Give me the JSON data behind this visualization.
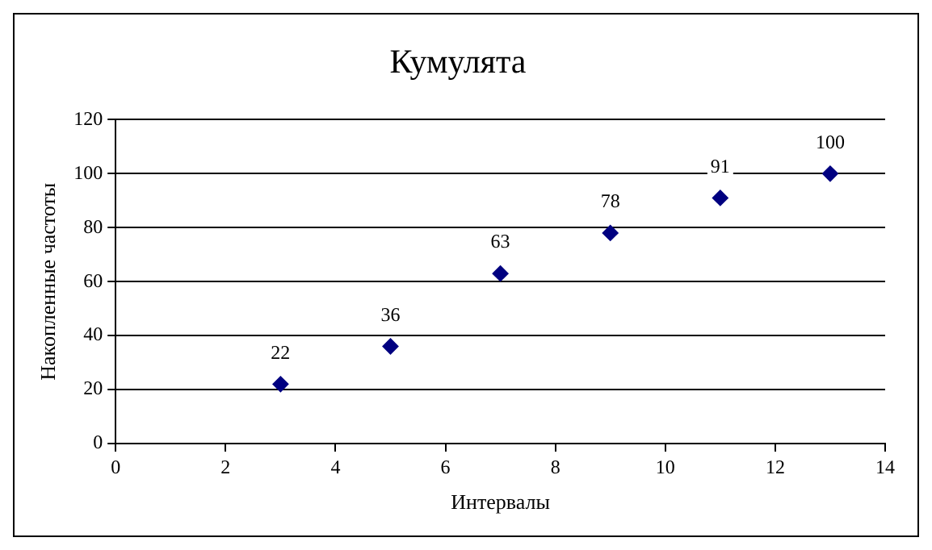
{
  "chart_data": {
    "type": "scatter",
    "title": "Кумулята",
    "xlabel": "Интервалы",
    "ylabel": "Накопленные частоты",
    "x": [
      3,
      5,
      7,
      9,
      11,
      13
    ],
    "series": [
      {
        "color": "#000080",
        "values": [
          22,
          36,
          63,
          78,
          91,
          100
        ]
      }
    ],
    "xlim": [
      0,
      14
    ],
    "xticks": [
      0,
      2,
      4,
      6,
      8,
      10,
      12,
      14
    ],
    "ylim": [
      0,
      120
    ],
    "yticks": [
      0,
      20,
      40,
      60,
      80,
      100,
      120
    ],
    "grid": "y",
    "legend": false,
    "marker": "diamond",
    "data_labels": true
  }
}
